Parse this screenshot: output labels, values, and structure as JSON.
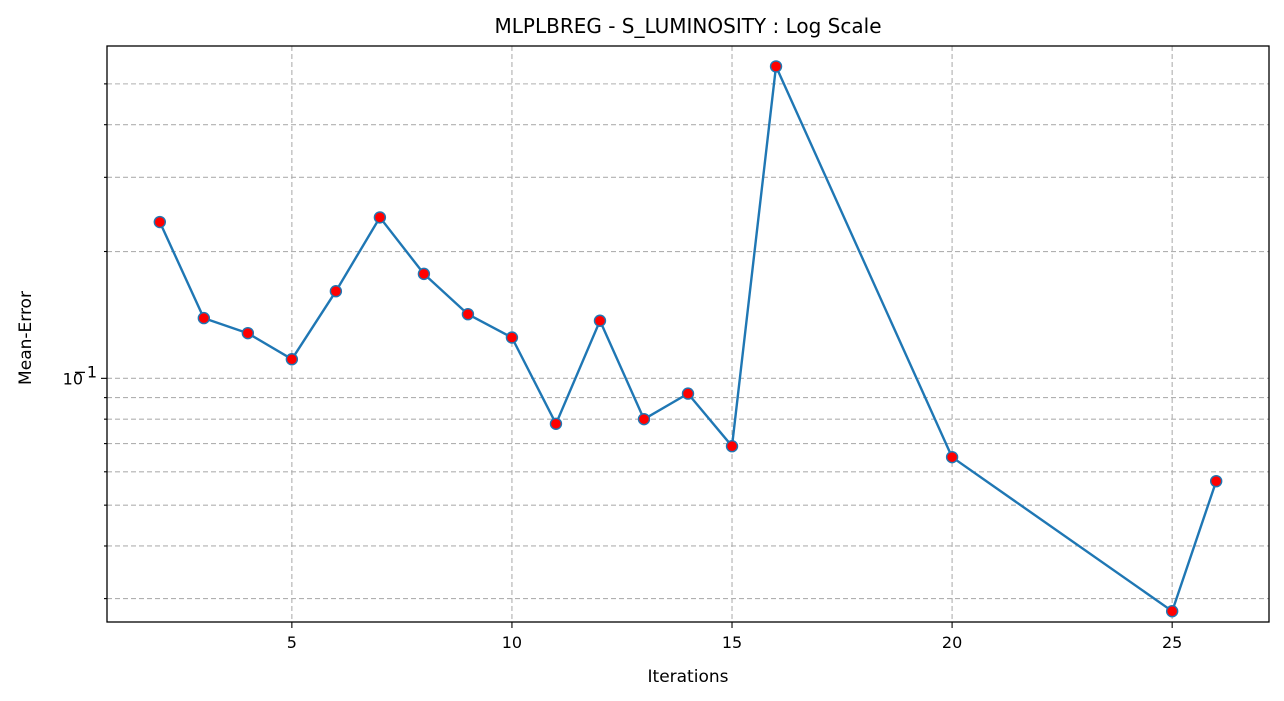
{
  "chart_data": {
    "type": "line",
    "title": "MLPLBREG - S_LUMINOSITY : Log Scale",
    "xlabel": "Iterations",
    "ylabel": "Mean-Error",
    "yscale": "log",
    "grid": true,
    "xlim": [
      0.8,
      27.2
    ],
    "ylim": [
      0.0264,
      0.615
    ],
    "x_ticks": [
      5,
      10,
      15,
      20,
      25
    ],
    "x_tick_labels": [
      "5",
      "10",
      "15",
      "20",
      "25"
    ],
    "y_major_ticks": [
      0.1
    ],
    "y_major_tick_labels": [
      "10",
      "−1"
    ],
    "y_minor_grid": [
      0.03,
      0.04,
      0.05,
      0.06,
      0.07,
      0.08,
      0.09,
      0.2,
      0.3,
      0.4,
      0.5
    ],
    "colors": {
      "line": "#1f77b4",
      "marker_fill": "#ff0000",
      "marker_edge": "#1f77b4"
    },
    "series": [
      {
        "x": [
          2,
          3,
          4,
          5,
          6,
          7,
          8,
          9,
          10,
          11,
          12,
          13,
          14,
          15,
          16,
          20,
          25,
          26
        ],
        "values": [
          0.235,
          0.139,
          0.128,
          0.111,
          0.161,
          0.241,
          0.177,
          0.142,
          0.125,
          0.078,
          0.137,
          0.08,
          0.092,
          0.069,
          0.55,
          0.065,
          0.028,
          0.057
        ]
      }
    ]
  }
}
